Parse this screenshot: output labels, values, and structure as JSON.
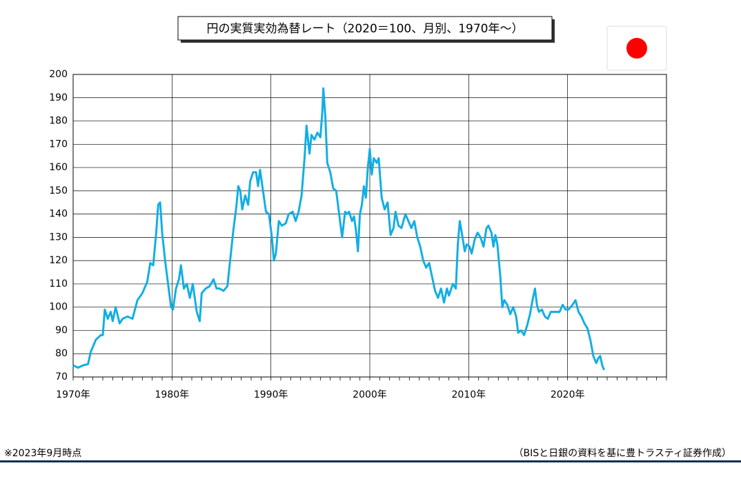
{
  "chart_data": {
    "type": "line",
    "title": "円の実質実効為替レート（2020＝100、月別、1970年～）",
    "note": "※2023年9月時点",
    "source": "（BISと日銀の資料を基に豊トラスティ証券作成）",
    "series": [
      {
        "name": "円の実質実効為替レート",
        "color": "#12aee4",
        "x": [
          1970,
          1970.5,
          1971,
          1971.5,
          1971.8,
          1972.3,
          1972.8,
          1973.0,
          1973.2,
          1973.5,
          1973.8,
          1974.0,
          1974.3,
          1974.7,
          1975,
          1975.5,
          1976,
          1976.5,
          1977,
          1977.5,
          1977.8,
          1978.1,
          1978.4,
          1978.6,
          1978.8,
          1979.0,
          1979.3,
          1979.6,
          1979.9,
          1980.1,
          1980.4,
          1980.7,
          1980.9,
          1981.2,
          1981.5,
          1981.8,
          1982.1,
          1982.5,
          1982.8,
          1983.0,
          1983.4,
          1983.8,
          1984.2,
          1984.5,
          1984.8,
          1985.2,
          1985.6,
          1985.9,
          1986.2,
          1986.5,
          1986.7,
          1986.9,
          1987.1,
          1987.4,
          1987.7,
          1987.9,
          1988.2,
          1988.5,
          1988.7,
          1988.9,
          1989.2,
          1989.5,
          1989.8,
          1990.1,
          1990.3,
          1990.5,
          1990.8,
          1991.1,
          1991.5,
          1991.8,
          1992.2,
          1992.5,
          1992.8,
          1993.1,
          1993.4,
          1993.6,
          1993.9,
          1994.1,
          1994.4,
          1994.7,
          1995.0,
          1995.2,
          1995.3,
          1995.5,
          1995.7,
          1996.0,
          1996.3,
          1996.6,
          1996.9,
          1997.2,
          1997.5,
          1997.7,
          1997.9,
          1998.2,
          1998.4,
          1998.6,
          1998.8,
          1999.0,
          1999.2,
          1999.4,
          1999.6,
          1999.8,
          2000.0,
          2000.2,
          2000.4,
          2000.7,
          2000.9,
          2001.2,
          2001.5,
          2001.8,
          2002.1,
          2002.4,
          2002.6,
          2002.9,
          2003.2,
          2003.6,
          2003.9,
          2004.2,
          2004.5,
          2004.8,
          2005.1,
          2005.4,
          2005.7,
          2006.0,
          2006.3,
          2006.6,
          2006.9,
          2007.2,
          2007.5,
          2007.8,
          2008.0,
          2008.4,
          2008.7,
          2008.9,
          2009.1,
          2009.3,
          2009.6,
          2009.8,
          2010.1,
          2010.3,
          2010.6,
          2010.9,
          2011.2,
          2011.5,
          2011.8,
          2012.0,
          2012.3,
          2012.5,
          2012.7,
          2012.9,
          2013.2,
          2013.4,
          2013.6,
          2013.9,
          2014.2,
          2014.5,
          2014.8,
          2015.0,
          2015.3,
          2015.6,
          2015.9,
          2016.2,
          2016.5,
          2016.7,
          2016.9,
          2017.1,
          2017.4,
          2017.7,
          2018.0,
          2018.3,
          2018.6,
          2018.9,
          2019.2,
          2019.5,
          2019.8,
          2020.1,
          2020.5,
          2020.8,
          2021.1,
          2021.4,
          2021.7,
          2022.0,
          2022.3,
          2022.6,
          2022.9,
          2023.1,
          2023.3,
          2023.5,
          2023.7
        ],
        "values": [
          75,
          74,
          75,
          75.5,
          81,
          86,
          88,
          88,
          99,
          95,
          98,
          94,
          100,
          93,
          95,
          96,
          95,
          103,
          106,
          111,
          119,
          118,
          132,
          144,
          145,
          132,
          120,
          110,
          100,
          99,
          108,
          112,
          118,
          108,
          110,
          104,
          110,
          98,
          94,
          106,
          108,
          109,
          112,
          108,
          108,
          107,
          109,
          121,
          133,
          143,
          152,
          150,
          142,
          148,
          144,
          154,
          158,
          158,
          152,
          159,
          150,
          141,
          140,
          130,
          120,
          123,
          137,
          135,
          136,
          140,
          141,
          137,
          141,
          148,
          164,
          178,
          166,
          174,
          172,
          175,
          173,
          184,
          194,
          182,
          162,
          158,
          151,
          150,
          140,
          130,
          141,
          140,
          141,
          137,
          139,
          133,
          124,
          140,
          144,
          152,
          147,
          160,
          168,
          157,
          164,
          162,
          164,
          147,
          142,
          145,
          131,
          134,
          141,
          135,
          134,
          140,
          137,
          134,
          137,
          130,
          126,
          120,
          117,
          119,
          113,
          107,
          104,
          108,
          102,
          108,
          105,
          110,
          108,
          127,
          137,
          132,
          124,
          127,
          126,
          123,
          129,
          132,
          130,
          126,
          134,
          135,
          132,
          126,
          131,
          127,
          113,
          100,
          103,
          101,
          97,
          100,
          96,
          89,
          90,
          88,
          92,
          97,
          104,
          108,
          101,
          98,
          99,
          96,
          95,
          98,
          98,
          98,
          98,
          101,
          99,
          99,
          101,
          103,
          98,
          96,
          93,
          91,
          86,
          79,
          76,
          78,
          79,
          75,
          73
        ]
      }
    ],
    "xlim": [
      1970,
      2030
    ],
    "xticks": [
      {
        "value": 1970,
        "label": "1970年"
      },
      {
        "value": 1980,
        "label": "1980年"
      },
      {
        "value": 1990,
        "label": "1990年"
      },
      {
        "value": 2000,
        "label": "2000年"
      },
      {
        "value": 2010,
        "label": "2010年"
      },
      {
        "value": 2020,
        "label": "2020年"
      }
    ],
    "ylim": [
      70,
      200
    ],
    "yticks": [
      70,
      80,
      90,
      100,
      110,
      120,
      130,
      140,
      150,
      160,
      170,
      180,
      190,
      200
    ],
    "grid": true
  }
}
